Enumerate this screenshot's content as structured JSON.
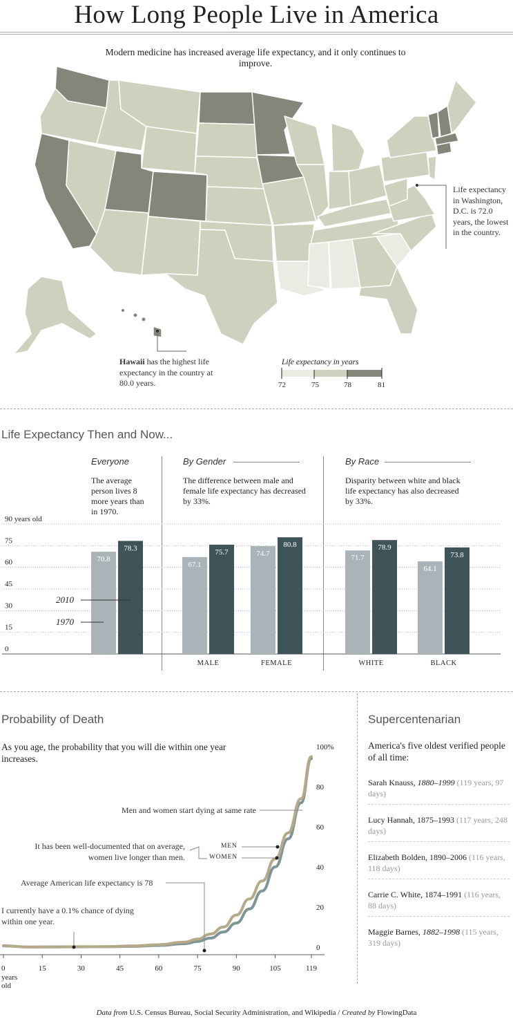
{
  "title": "How Long People Live in America",
  "intro": "Modern medicine has increased average life expectancy, and it only continues to improve.",
  "map": {
    "dc_note": "Life expectancy in Washington, D.C. is 72.0 years, the lowest in the country.",
    "hawaii_bold": "Hawaii",
    "hawaii_rest": " has the highest life expectancy in the country at 80.0 years.",
    "legend_title": "Life expectancy in years",
    "legend_ticks": [
      "72",
      "75",
      "78",
      "81"
    ],
    "colors": [
      "#ecebe3",
      "#d0d0bf",
      "#b0b09d",
      "#85857a"
    ]
  },
  "then_now": {
    "title": "Life Expectancy Then and Now...",
    "panels": [
      {
        "title": "Everyone",
        "text": "The average person lives 8 more years than in 1970."
      },
      {
        "title": "By Gender",
        "text": "The difference between male and female life expectancy has decreased by 33%."
      },
      {
        "title": "By Race",
        "text": "Disparity between white and black life expectancy has also decreased by 33%."
      }
    ],
    "y_unit": "years old",
    "label_2010": "2010",
    "label_1970": "1970"
  },
  "probability": {
    "title": "Probability of Death",
    "subtitle": "As you age, the probability that you will die within one year increases.",
    "ann_same_rate": "Men and women start dying at same rate",
    "ann_documented": "It has been well-documented that on average, women live longer than men.",
    "ann_men": "MEN",
    "ann_women": "WOMEN",
    "ann_avg": "Average American life expectancy is 78",
    "ann_chance": "I currently have a 0.1% chance of dying within one year.",
    "x_unit": "years old",
    "y_top_suffix": "%"
  },
  "super": {
    "title": "Supercentenarian",
    "subtitle": "America's five oldest verified people of all time:",
    "people": [
      {
        "name": "Sarah Knauss, ",
        "years": "1880–1999",
        "years_italic": true,
        "age": "(119 years, 97 days)"
      },
      {
        "name": "Lucy Hannah, ",
        "years": "1875–1993",
        "years_italic": false,
        "age": "(117 years, 248 days)"
      },
      {
        "name": "Elizabeth Bolden, ",
        "years": "1890–2006",
        "years_italic": false,
        "age": "(116 years, 118 days)"
      },
      {
        "name": "Carrie C. White, ",
        "years": "1874–1991",
        "years_italic": false,
        "age": "(116 years, 88 days)"
      },
      {
        "name": "Maggie Barnes, ",
        "years": "1882–1998",
        "years_italic": true,
        "age": "(115 years, 319 days)"
      }
    ]
  },
  "footer": {
    "part1": "Data from",
    "part2": " U.S. Census Bureau, Social Security Administration, and Wikipedia / ",
    "part3": "Created by",
    "part4": " FlowingData"
  },
  "chart_data": [
    {
      "type": "bar",
      "title": "Life Expectancy Then and Now...",
      "ylim": [
        0,
        90
      ],
      "yticks": [
        0,
        15,
        30,
        45,
        60,
        75,
        90
      ],
      "series_names": [
        "1970",
        "2010"
      ],
      "colors": {
        "1970": "#aab4b8",
        "2010": "#3f5459"
      },
      "groups": [
        {
          "category": "",
          "values": [
            70.8,
            78.3
          ]
        },
        {
          "category": "MALE",
          "values": [
            67.1,
            75.7
          ]
        },
        {
          "category": "FEMALE",
          "values": [
            74.7,
            80.8
          ]
        },
        {
          "category": "WHITE",
          "values": [
            71.7,
            78.9
          ]
        },
        {
          "category": "BLACK",
          "values": [
            64.1,
            73.8
          ]
        }
      ]
    },
    {
      "type": "line",
      "title": "Probability of Death",
      "xlim": [
        0,
        119
      ],
      "ylim": [
        0,
        100
      ],
      "xticks": [
        0,
        15,
        30,
        45,
        60,
        75,
        90,
        105,
        119
      ],
      "yticks": [
        0,
        20,
        40,
        60,
        80,
        100
      ],
      "series": [
        {
          "name": "MEN",
          "color": "#b5a98a",
          "x": [
            0,
            10,
            20,
            30,
            40,
            50,
            60,
            70,
            75,
            80,
            85,
            90,
            95,
            100,
            105,
            110,
            115,
            119
          ],
          "y": [
            0.7,
            0.05,
            0.15,
            0.2,
            0.25,
            0.6,
            1.2,
            2.5,
            4,
            6.5,
            10,
            16,
            24,
            33,
            44,
            57,
            74,
            95
          ]
        },
        {
          "name": "WOMEN",
          "color": "#7e9497",
          "x": [
            0,
            10,
            20,
            30,
            40,
            50,
            60,
            70,
            75,
            80,
            85,
            90,
            95,
            100,
            105,
            110,
            115,
            119
          ],
          "y": [
            0.6,
            0.05,
            0.1,
            0.15,
            0.2,
            0.4,
            0.8,
            1.7,
            2.8,
            4.5,
            7.5,
            12,
            19,
            28,
            40,
            54,
            72,
            94
          ]
        }
      ]
    }
  ]
}
